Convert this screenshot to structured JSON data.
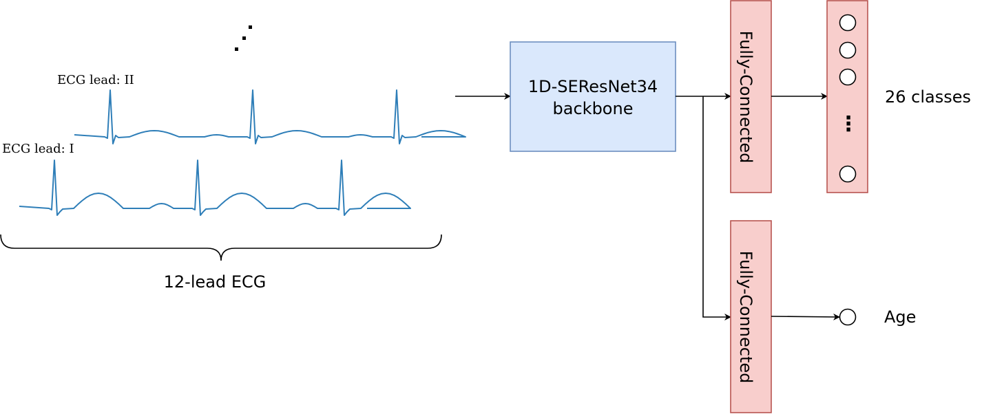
{
  "ecg": {
    "lead_ii_label": "ECG lead: II",
    "lead_i_label": "ECG lead: I",
    "group_label": "12-lead ECG",
    "trace_color": "#2e7eb8"
  },
  "backbone": {
    "label_line1": "1D-SEResNet34",
    "label_line2": "backbone",
    "fill": "#dae8fc",
    "stroke": "#6c8ebf"
  },
  "heads": {
    "fc_top_label": "Fully-Connected",
    "fc_bottom_label": "Fully-Connected",
    "fill": "#f8cecc",
    "stroke": "#b85450"
  },
  "outputs": {
    "classes_label": "26 classes",
    "age_label": "Age",
    "vertical_ellipsis": "⋮"
  }
}
